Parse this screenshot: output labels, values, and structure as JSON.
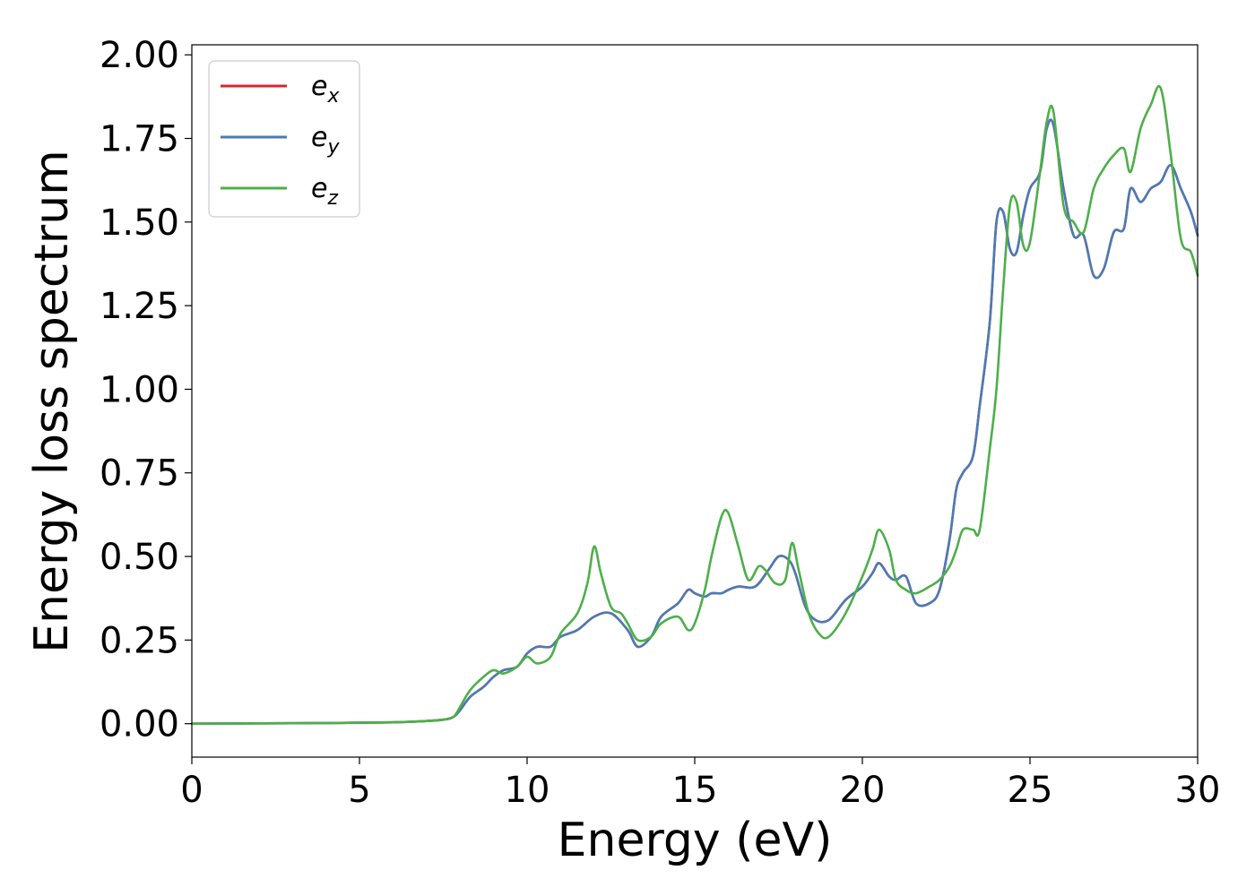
{
  "chart_data": {
    "type": "line",
    "xlabel": "Energy (eV)",
    "ylabel": "Energy loss spectrum",
    "xlim": [
      0,
      30
    ],
    "ylim": [
      -0.1,
      2.03
    ],
    "x_ticks": [
      0,
      5,
      10,
      15,
      20,
      25,
      30
    ],
    "x_tick_labels": [
      "0",
      "5",
      "10",
      "15",
      "20",
      "25",
      "30"
    ],
    "y_ticks": [
      0.0,
      0.25,
      0.5,
      0.75,
      1.0,
      1.25,
      1.5,
      1.75,
      2.0
    ],
    "y_tick_labels": [
      "0.00",
      "0.25",
      "0.50",
      "0.75",
      "1.00",
      "1.25",
      "1.50",
      "1.75",
      "2.00"
    ],
    "grid": false,
    "legend_position": "top-left",
    "series": [
      {
        "name": "e",
        "sub": "x",
        "color": "#d62728",
        "x": [
          0,
          2,
          4,
          6,
          7,
          7.5,
          7.8,
          8.0,
          8.3,
          8.7,
          9.0,
          9.3,
          9.7,
          10.0,
          10.3,
          10.7,
          11.0,
          11.5,
          12.0,
          12.5,
          13.0,
          13.3,
          13.7,
          14.0,
          14.5,
          14.8,
          15.0,
          15.3,
          15.5,
          15.8,
          16.0,
          16.3,
          16.8,
          17.2,
          17.5,
          17.8,
          18.0,
          18.3,
          18.6,
          19.0,
          19.5,
          20.0,
          20.3,
          20.5,
          20.8,
          21.0,
          21.3,
          21.6,
          22.0,
          22.3,
          22.6,
          22.8,
          23.0,
          23.3,
          23.5,
          23.8,
          24.0,
          24.2,
          24.4,
          24.6,
          24.8,
          25.0,
          25.3,
          25.5,
          25.7,
          26.0,
          26.3,
          26.6,
          26.9,
          27.2,
          27.5,
          27.8,
          28.0,
          28.3,
          28.6,
          28.9,
          29.2,
          29.5,
          29.8,
          30.0
        ],
        "y": [
          0,
          0.001,
          0.002,
          0.004,
          0.008,
          0.012,
          0.02,
          0.04,
          0.08,
          0.11,
          0.14,
          0.16,
          0.17,
          0.21,
          0.23,
          0.23,
          0.26,
          0.28,
          0.32,
          0.33,
          0.28,
          0.23,
          0.26,
          0.32,
          0.36,
          0.4,
          0.39,
          0.38,
          0.39,
          0.39,
          0.4,
          0.41,
          0.41,
          0.46,
          0.5,
          0.49,
          0.45,
          0.35,
          0.31,
          0.31,
          0.37,
          0.41,
          0.45,
          0.48,
          0.44,
          0.43,
          0.44,
          0.36,
          0.36,
          0.4,
          0.55,
          0.7,
          0.75,
          0.8,
          0.95,
          1.2,
          1.5,
          1.53,
          1.42,
          1.41,
          1.52,
          1.6,
          1.65,
          1.78,
          1.79,
          1.6,
          1.46,
          1.46,
          1.34,
          1.36,
          1.47,
          1.48,
          1.6,
          1.56,
          1.6,
          1.62,
          1.67,
          1.6,
          1.53,
          1.46
        ]
      },
      {
        "name": "e",
        "sub": "y",
        "color": "#4a7bb5",
        "x": [
          0,
          2,
          4,
          6,
          7,
          7.5,
          7.8,
          8.0,
          8.3,
          8.7,
          9.0,
          9.3,
          9.7,
          10.0,
          10.3,
          10.7,
          11.0,
          11.5,
          12.0,
          12.5,
          13.0,
          13.3,
          13.7,
          14.0,
          14.5,
          14.8,
          15.0,
          15.3,
          15.5,
          15.8,
          16.0,
          16.3,
          16.8,
          17.2,
          17.5,
          17.8,
          18.0,
          18.3,
          18.6,
          19.0,
          19.5,
          20.0,
          20.3,
          20.5,
          20.8,
          21.0,
          21.3,
          21.6,
          22.0,
          22.3,
          22.6,
          22.8,
          23.0,
          23.3,
          23.5,
          23.8,
          24.0,
          24.2,
          24.4,
          24.6,
          24.8,
          25.0,
          25.3,
          25.5,
          25.7,
          26.0,
          26.3,
          26.6,
          26.9,
          27.2,
          27.5,
          27.8,
          28.0,
          28.3,
          28.6,
          28.9,
          29.2,
          29.5,
          29.8,
          30.0
        ],
        "y": [
          0,
          0.001,
          0.002,
          0.004,
          0.008,
          0.012,
          0.02,
          0.04,
          0.08,
          0.11,
          0.14,
          0.16,
          0.17,
          0.21,
          0.23,
          0.23,
          0.26,
          0.28,
          0.32,
          0.33,
          0.28,
          0.23,
          0.26,
          0.32,
          0.36,
          0.4,
          0.39,
          0.38,
          0.39,
          0.39,
          0.4,
          0.41,
          0.41,
          0.46,
          0.5,
          0.49,
          0.45,
          0.35,
          0.31,
          0.31,
          0.37,
          0.41,
          0.45,
          0.48,
          0.44,
          0.43,
          0.44,
          0.36,
          0.36,
          0.4,
          0.55,
          0.7,
          0.75,
          0.8,
          0.95,
          1.2,
          1.5,
          1.53,
          1.42,
          1.41,
          1.52,
          1.6,
          1.65,
          1.78,
          1.79,
          1.6,
          1.46,
          1.46,
          1.34,
          1.36,
          1.47,
          1.48,
          1.6,
          1.56,
          1.6,
          1.62,
          1.67,
          1.6,
          1.53,
          1.46
        ]
      },
      {
        "name": "e",
        "sub": "z",
        "color": "#4daf4a",
        "x": [
          0,
          2,
          4,
          6,
          7,
          7.5,
          7.8,
          8.0,
          8.3,
          8.7,
          9.0,
          9.3,
          9.7,
          10.0,
          10.3,
          10.7,
          11.0,
          11.5,
          11.8,
          12.0,
          12.2,
          12.5,
          12.8,
          13.0,
          13.3,
          13.7,
          14.0,
          14.5,
          14.8,
          15.0,
          15.3,
          15.5,
          15.8,
          16.0,
          16.3,
          16.6,
          16.9,
          17.1,
          17.4,
          17.7,
          17.9,
          18.1,
          18.4,
          18.7,
          19.0,
          19.5,
          20.0,
          20.3,
          20.5,
          20.8,
          21.0,
          21.3,
          21.6,
          22.0,
          22.3,
          22.6,
          22.8,
          23.0,
          23.3,
          23.5,
          23.8,
          24.0,
          24.2,
          24.4,
          24.6,
          24.8,
          25.0,
          25.3,
          25.5,
          25.7,
          26.0,
          26.3,
          26.6,
          26.9,
          27.2,
          27.5,
          27.8,
          28.0,
          28.3,
          28.6,
          28.9,
          29.2,
          29.5,
          29.8,
          30.0
        ],
        "y": [
          0,
          0.001,
          0.002,
          0.004,
          0.008,
          0.012,
          0.02,
          0.05,
          0.1,
          0.14,
          0.16,
          0.15,
          0.17,
          0.2,
          0.18,
          0.2,
          0.27,
          0.33,
          0.42,
          0.53,
          0.45,
          0.35,
          0.33,
          0.3,
          0.25,
          0.26,
          0.3,
          0.32,
          0.28,
          0.3,
          0.4,
          0.5,
          0.62,
          0.63,
          0.53,
          0.43,
          0.47,
          0.46,
          0.42,
          0.43,
          0.54,
          0.46,
          0.33,
          0.27,
          0.26,
          0.33,
          0.44,
          0.52,
          0.58,
          0.52,
          0.43,
          0.4,
          0.39,
          0.41,
          0.43,
          0.47,
          0.52,
          0.58,
          0.58,
          0.58,
          0.82,
          1.0,
          1.3,
          1.55,
          1.56,
          1.43,
          1.44,
          1.65,
          1.8,
          1.83,
          1.55,
          1.5,
          1.47,
          1.6,
          1.66,
          1.7,
          1.72,
          1.65,
          1.78,
          1.85,
          1.9,
          1.7,
          1.45,
          1.41,
          1.34
        ]
      }
    ]
  }
}
